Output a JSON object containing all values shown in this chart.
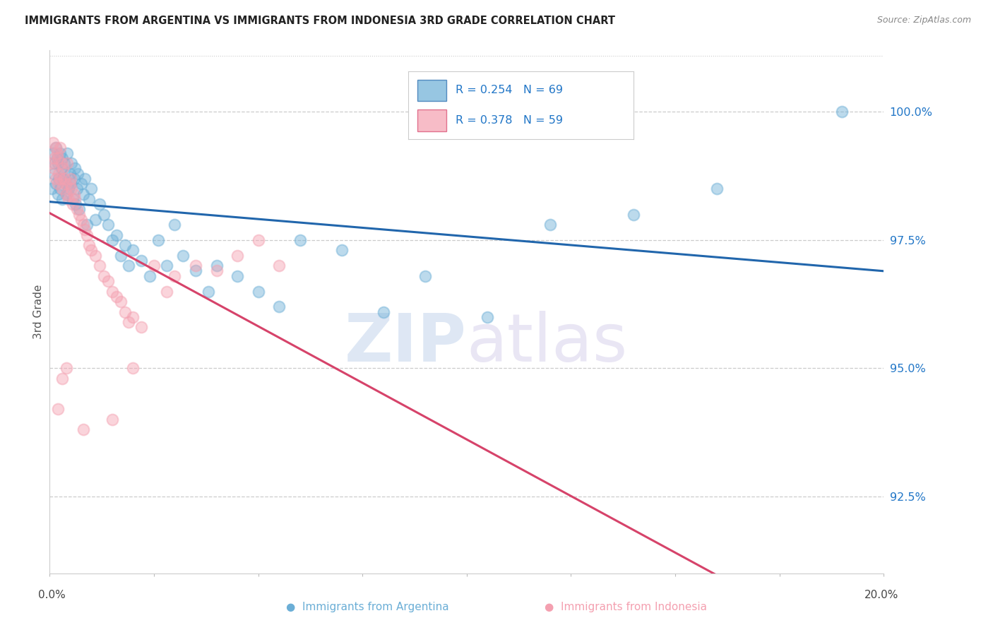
{
  "title": "IMMIGRANTS FROM ARGENTINA VS IMMIGRANTS FROM INDONESIA 3RD GRADE CORRELATION CHART",
  "source": "Source: ZipAtlas.com",
  "ylabel": "3rd Grade",
  "y_ticks": [
    92.5,
    95.0,
    97.5,
    100.0
  ],
  "y_tick_labels": [
    "92.5%",
    "95.0%",
    "97.5%",
    "100.0%"
  ],
  "x_min": 0.0,
  "x_max": 20.0,
  "y_min": 91.0,
  "y_max": 101.2,
  "argentina_R": 0.254,
  "argentina_N": 69,
  "indonesia_R": 0.378,
  "indonesia_N": 59,
  "argentina_color": "#6baed6",
  "indonesia_color": "#f4a0b0",
  "argentina_line_color": "#2166ac",
  "indonesia_line_color": "#d6436a",
  "legend_label_argentina": "Immigrants from Argentina",
  "legend_label_indonesia": "Immigrants from Indonesia",
  "watermark_zip": "ZIP",
  "watermark_atlas": "atlas",
  "argentina_x": [
    0.05,
    0.08,
    0.1,
    0.12,
    0.15,
    0.15,
    0.18,
    0.2,
    0.2,
    0.22,
    0.25,
    0.25,
    0.28,
    0.3,
    0.3,
    0.32,
    0.35,
    0.35,
    0.38,
    0.4,
    0.42,
    0.45,
    0.48,
    0.5,
    0.52,
    0.55,
    0.58,
    0.6,
    0.62,
    0.65,
    0.68,
    0.7,
    0.75,
    0.8,
    0.85,
    0.9,
    0.95,
    1.0,
    1.1,
    1.2,
    1.3,
    1.4,
    1.5,
    1.6,
    1.7,
    1.8,
    1.9,
    2.0,
    2.2,
    2.4,
    2.6,
    2.8,
    3.0,
    3.2,
    3.5,
    3.8,
    4.0,
    4.5,
    5.0,
    5.5,
    6.0,
    7.0,
    8.0,
    9.0,
    10.5,
    12.0,
    14.0,
    16.0,
    19.0
  ],
  "argentina_y": [
    98.5,
    99.2,
    98.8,
    99.0,
    98.6,
    99.3,
    99.1,
    98.4,
    99.0,
    98.7,
    99.2,
    98.5,
    98.9,
    98.3,
    99.1,
    98.7,
    98.8,
    99.0,
    98.6,
    98.4,
    99.2,
    98.5,
    98.8,
    98.6,
    99.0,
    98.3,
    98.7,
    98.9,
    98.2,
    98.5,
    98.8,
    98.1,
    98.6,
    98.4,
    98.7,
    97.8,
    98.3,
    98.5,
    97.9,
    98.2,
    98.0,
    97.8,
    97.5,
    97.6,
    97.2,
    97.4,
    97.0,
    97.3,
    97.1,
    96.8,
    97.5,
    97.0,
    97.8,
    97.2,
    96.9,
    96.5,
    97.0,
    96.8,
    96.5,
    96.2,
    97.5,
    97.3,
    96.1,
    96.8,
    96.0,
    97.8,
    98.0,
    98.5,
    100.0
  ],
  "indonesia_x": [
    0.05,
    0.08,
    0.1,
    0.12,
    0.15,
    0.15,
    0.18,
    0.2,
    0.2,
    0.22,
    0.25,
    0.25,
    0.28,
    0.3,
    0.32,
    0.35,
    0.38,
    0.4,
    0.42,
    0.45,
    0.48,
    0.5,
    0.52,
    0.55,
    0.58,
    0.6,
    0.65,
    0.7,
    0.75,
    0.8,
    0.85,
    0.9,
    0.95,
    1.0,
    1.1,
    1.2,
    1.3,
    1.4,
    1.5,
    1.6,
    1.7,
    1.8,
    1.9,
    2.0,
    2.2,
    2.5,
    2.8,
    3.0,
    3.5,
    4.0,
    4.5,
    5.0,
    5.5,
    2.0,
    1.5,
    0.8,
    0.4,
    0.3,
    0.2
  ],
  "indonesia_y": [
    99.0,
    99.4,
    98.9,
    99.1,
    98.7,
    99.3,
    99.2,
    98.6,
    99.1,
    98.8,
    99.3,
    98.7,
    99.0,
    98.5,
    98.9,
    98.7,
    98.6,
    98.4,
    99.0,
    98.3,
    98.6,
    98.7,
    98.5,
    98.2,
    98.4,
    98.3,
    98.1,
    98.0,
    97.9,
    97.8,
    97.7,
    97.6,
    97.4,
    97.3,
    97.2,
    97.0,
    96.8,
    96.7,
    96.5,
    96.4,
    96.3,
    96.1,
    95.9,
    96.0,
    95.8,
    97.0,
    96.5,
    96.8,
    97.0,
    96.9,
    97.2,
    97.5,
    97.0,
    95.0,
    94.0,
    93.8,
    95.0,
    94.8,
    94.2
  ]
}
